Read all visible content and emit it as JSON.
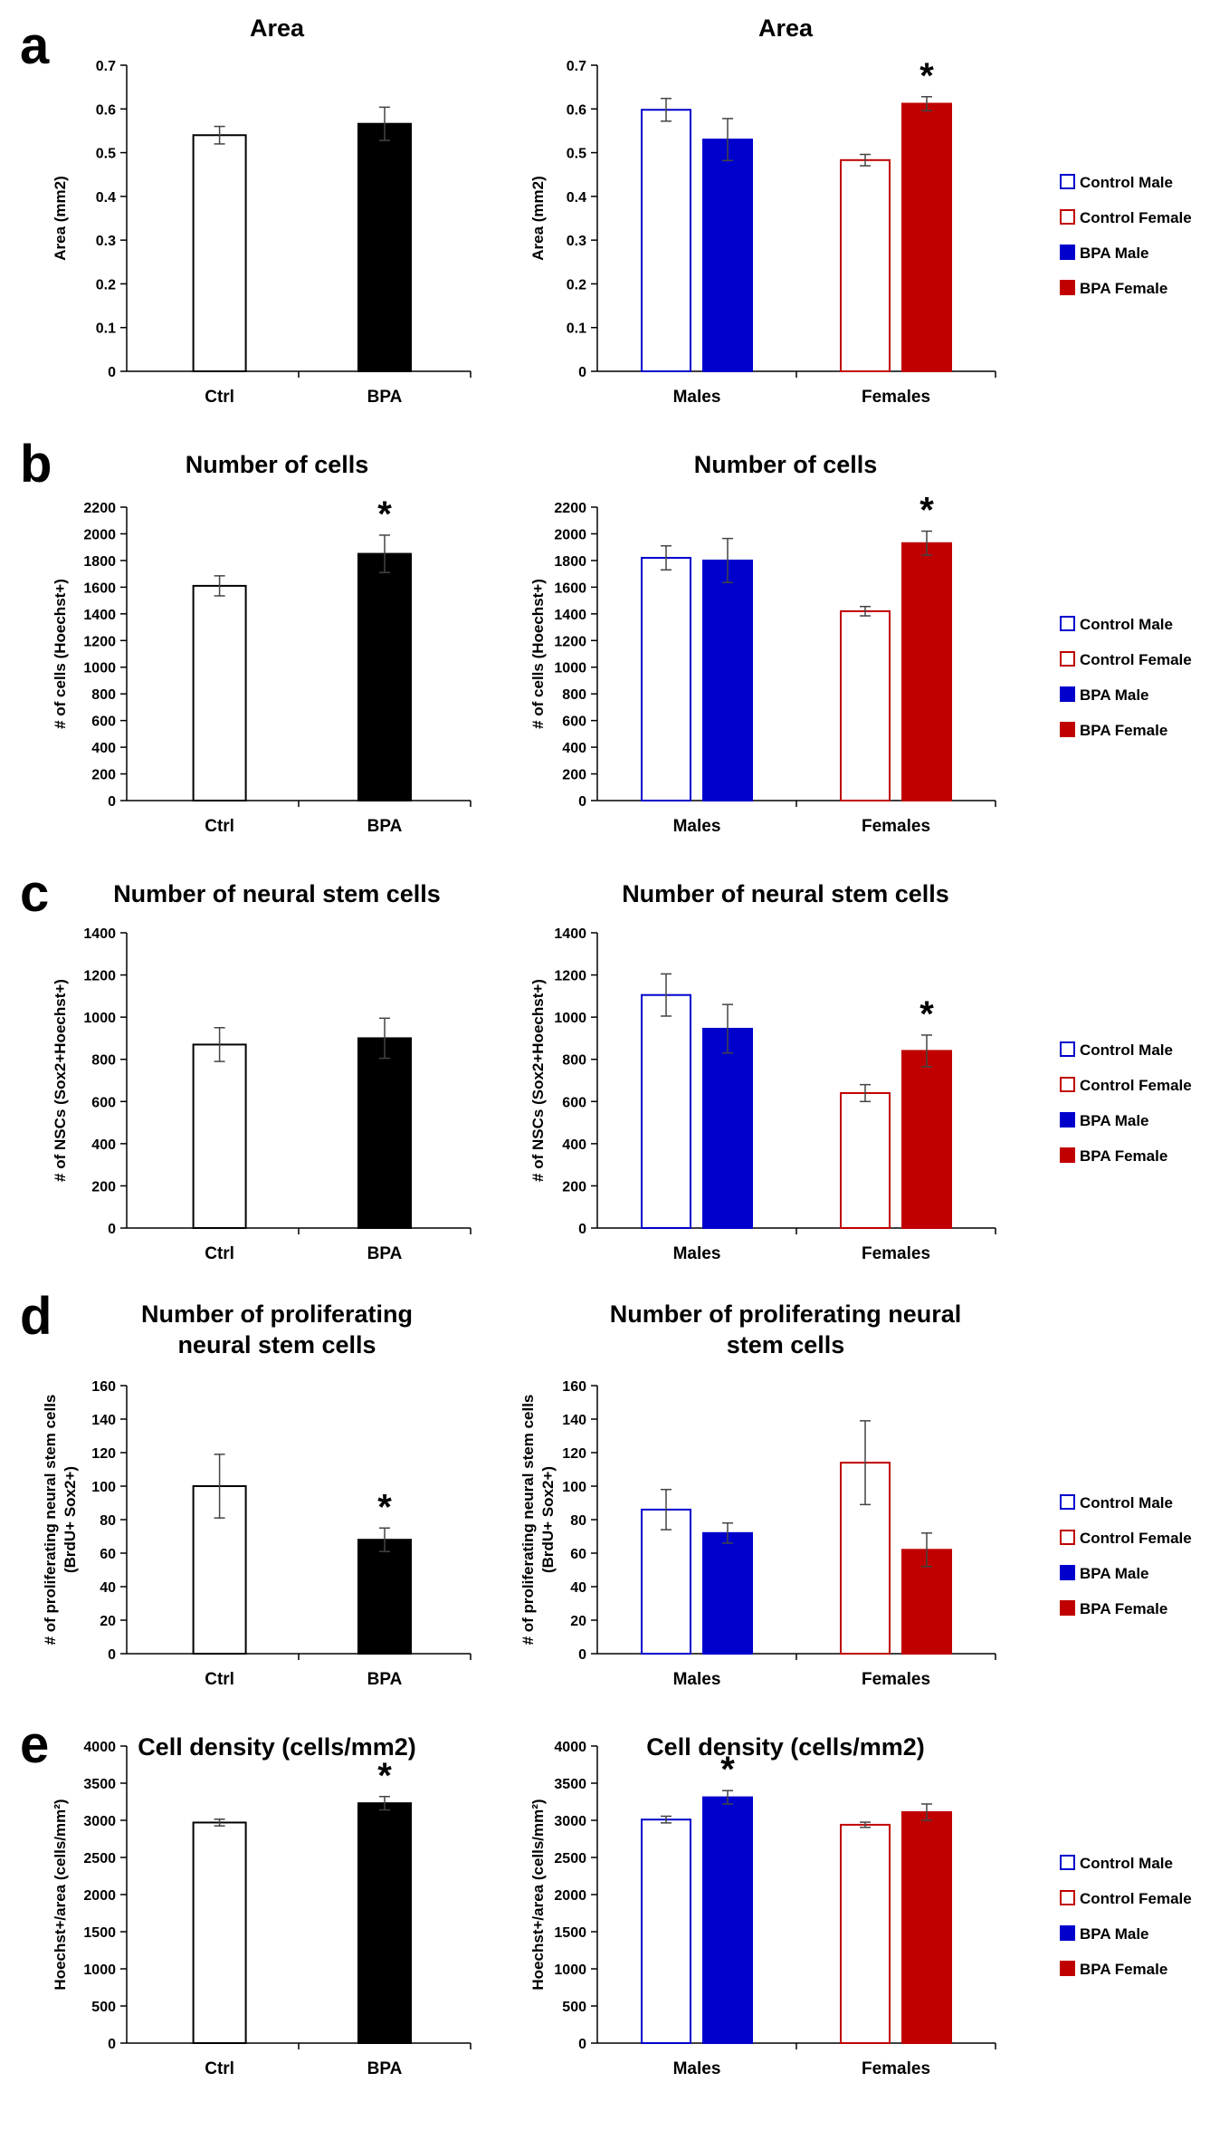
{
  "figure": {
    "panel_letters": [
      "a",
      "b",
      "c",
      "d",
      "e"
    ]
  },
  "legend": {
    "entries": [
      {
        "label": "Control Male",
        "fill": "#ffffff",
        "stroke": "#0000cc"
      },
      {
        "label": "Control Female",
        "fill": "#ffffff",
        "stroke": "#c00000"
      },
      {
        "label": "BPA Male",
        "fill": "#0000cc",
        "stroke": "#0000cc"
      },
      {
        "label": "BPA Female",
        "fill": "#c00000",
        "stroke": "#c00000"
      }
    ]
  },
  "colors": {
    "ctrl_fill": "#ffffff",
    "bpa_fill": "#000000",
    "male": "#0000cc",
    "female": "#c00000"
  },
  "chart_data": [
    {
      "id": "a-left",
      "type": "bar",
      "title": [
        "Area"
      ],
      "ylabel": [
        "Area (mm2)"
      ],
      "ylim": [
        0,
        0.7
      ],
      "yticks": [
        0,
        0.1,
        0.2,
        0.3,
        0.4,
        0.5,
        0.6,
        0.7
      ],
      "categories": [
        "Ctrl",
        "BPA"
      ],
      "series": [
        {
          "name": "Ctrl",
          "values": [
            0.54,
            null
          ],
          "errors": [
            0.02,
            null
          ]
        },
        {
          "name": "BPA",
          "values": [
            null,
            0.566
          ],
          "errors": [
            null,
            0.038
          ]
        }
      ],
      "significant": [
        false,
        false
      ]
    },
    {
      "id": "a-right",
      "type": "bar",
      "title": [
        "Area"
      ],
      "ylabel": [
        "Area (mm2)"
      ],
      "ylim": [
        0,
        0.7
      ],
      "yticks": [
        0,
        0.1,
        0.2,
        0.3,
        0.4,
        0.5,
        0.6,
        0.7
      ],
      "categories": [
        "Males",
        "Females"
      ],
      "series": [
        {
          "name": "Control",
          "values": [
            0.598,
            0.483
          ],
          "errors": [
            0.026,
            0.013
          ]
        },
        {
          "name": "BPA",
          "values": [
            0.53,
            0.612
          ],
          "errors": [
            0.048,
            0.016
          ]
        }
      ],
      "significant": [
        false,
        true
      ]
    },
    {
      "id": "b-left",
      "type": "bar",
      "title": [
        "Number of cells"
      ],
      "ylabel": [
        "# of cells (Hoechst+)"
      ],
      "ylim": [
        0,
        2200
      ],
      "yticks": [
        0,
        200,
        400,
        600,
        800,
        1000,
        1200,
        1400,
        1600,
        1800,
        2000,
        2200
      ],
      "categories": [
        "Ctrl",
        "BPA"
      ],
      "series": [
        {
          "name": "Ctrl",
          "values": [
            1610,
            null
          ],
          "errors": [
            75,
            null
          ]
        },
        {
          "name": "BPA",
          "values": [
            null,
            1850
          ],
          "errors": [
            null,
            140
          ]
        }
      ],
      "significant": [
        false,
        true
      ]
    },
    {
      "id": "b-right",
      "type": "bar",
      "title": [
        "Number of cells"
      ],
      "ylabel": [
        "# of cells (Hoechst+)"
      ],
      "ylim": [
        0,
        2200
      ],
      "yticks": [
        0,
        200,
        400,
        600,
        800,
        1000,
        1200,
        1400,
        1600,
        1800,
        2000,
        2200
      ],
      "categories": [
        "Males",
        "Females"
      ],
      "series": [
        {
          "name": "Control",
          "values": [
            1820,
            1420
          ],
          "errors": [
            90,
            35
          ]
        },
        {
          "name": "BPA",
          "values": [
            1800,
            1930
          ],
          "errors": [
            165,
            90
          ]
        }
      ],
      "significant": [
        false,
        true
      ]
    },
    {
      "id": "c-left",
      "type": "bar",
      "title": [
        "Number of neural stem cells"
      ],
      "ylabel": [
        "# of NSCs (Sox2+Hoechst+)"
      ],
      "ylim": [
        0,
        1400
      ],
      "yticks": [
        0,
        200,
        400,
        600,
        800,
        1000,
        1200,
        1400
      ],
      "categories": [
        "Ctrl",
        "BPA"
      ],
      "series": [
        {
          "name": "Ctrl",
          "values": [
            870,
            null
          ],
          "errors": [
            80,
            null
          ]
        },
        {
          "name": "BPA",
          "values": [
            null,
            900
          ],
          "errors": [
            null,
            95
          ]
        }
      ],
      "significant": [
        false,
        false
      ]
    },
    {
      "id": "c-right",
      "type": "bar",
      "title": [
        "Number of neural stem cells"
      ],
      "ylabel": [
        "# of NSCs (Sox2+Hoechst+)"
      ],
      "ylim": [
        0,
        1400
      ],
      "yticks": [
        0,
        200,
        400,
        600,
        800,
        1000,
        1200,
        1400
      ],
      "categories": [
        "Males",
        "Females"
      ],
      "series": [
        {
          "name": "Control",
          "values": [
            1105,
            640
          ],
          "errors": [
            100,
            40
          ]
        },
        {
          "name": "BPA",
          "values": [
            945,
            840
          ],
          "errors": [
            115,
            75
          ]
        }
      ],
      "significant": [
        false,
        true
      ]
    },
    {
      "id": "d-left",
      "type": "bar",
      "title": [
        "Number of proliferating",
        "neural stem cells"
      ],
      "ylabel": [
        "# of proliferating neural stem cells",
        "(BrdU+ Sox2+)"
      ],
      "ylim": [
        0,
        160
      ],
      "yticks": [
        0,
        20,
        40,
        60,
        80,
        100,
        120,
        140,
        160
      ],
      "categories": [
        "Ctrl",
        "BPA"
      ],
      "series": [
        {
          "name": "Ctrl",
          "values": [
            100,
            null
          ],
          "errors": [
            19,
            null
          ]
        },
        {
          "name": "BPA",
          "values": [
            null,
            68
          ],
          "errors": [
            null,
            7
          ]
        }
      ],
      "significant": [
        false,
        true
      ]
    },
    {
      "id": "d-right",
      "type": "bar",
      "title": [
        "Number of proliferating neural",
        "stem cells"
      ],
      "ylabel": [
        "# of proliferating neural stem cells",
        "(BrdU+ Sox2+)"
      ],
      "ylim": [
        0,
        160
      ],
      "yticks": [
        0,
        20,
        40,
        60,
        80,
        100,
        120,
        140,
        160
      ],
      "categories": [
        "Males",
        "Females"
      ],
      "series": [
        {
          "name": "Control",
          "values": [
            86,
            114
          ],
          "errors": [
            12,
            25
          ]
        },
        {
          "name": "BPA",
          "values": [
            72,
            62
          ],
          "errors": [
            6,
            10
          ]
        }
      ],
      "significant": [
        false,
        false
      ]
    },
    {
      "id": "e-left",
      "type": "bar",
      "title": [
        "Cell density (cells/mm2)"
      ],
      "ylabel": [
        "Hoechst+/area (cells/mm²)"
      ],
      "ylim": [
        0,
        4000
      ],
      "yticks": [
        0,
        500,
        1000,
        1500,
        2000,
        2500,
        3000,
        3500,
        4000
      ],
      "categories": [
        "Ctrl",
        "BPA"
      ],
      "series": [
        {
          "name": "Ctrl",
          "values": [
            2970,
            null
          ],
          "errors": [
            45,
            null
          ]
        },
        {
          "name": "BPA",
          "values": [
            null,
            3230
          ],
          "errors": [
            null,
            90
          ]
        }
      ],
      "significant": [
        false,
        true
      ]
    },
    {
      "id": "e-right",
      "type": "bar",
      "title": [
        "Cell density (cells/mm2)"
      ],
      "ylabel": [
        "Hoechst+/area (cells/mm²)"
      ],
      "ylim": [
        0,
        4000
      ],
      "yticks": [
        0,
        500,
        1000,
        1500,
        2000,
        2500,
        3000,
        3500,
        4000
      ],
      "categories": [
        "Males",
        "Females"
      ],
      "series": [
        {
          "name": "Control",
          "values": [
            3010,
            2940
          ],
          "errors": [
            45,
            35
          ]
        },
        {
          "name": "BPA",
          "values": [
            3310,
            3110
          ],
          "errors": [
            90,
            110
          ]
        }
      ],
      "significant": [
        true,
        false
      ]
    }
  ]
}
